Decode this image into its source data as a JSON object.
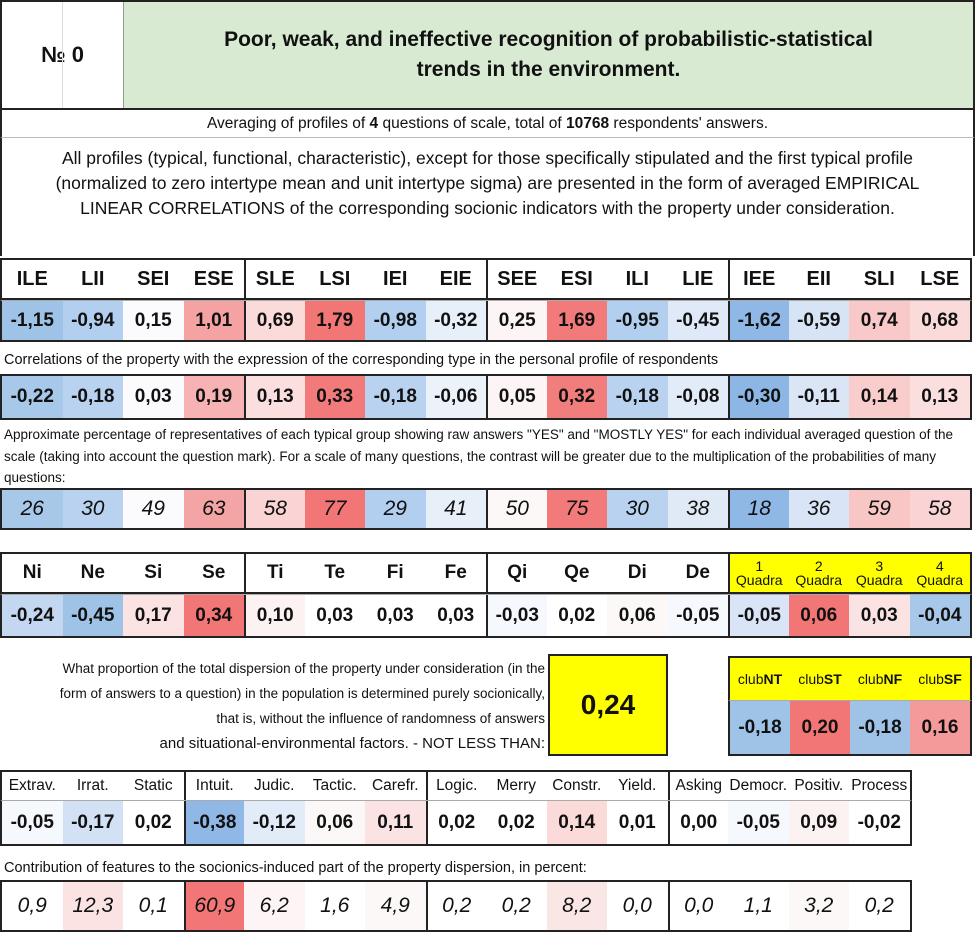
{
  "header": {
    "number_label": "№ 0",
    "title": "Poor, weak, and ineffective recognition of probabilistic-statistical trends in the environment."
  },
  "averaging": {
    "prefix": "Averaging of profiles of ",
    "questions": "4",
    "middle": " questions of scale, total of ",
    "respondents": "10768",
    "suffix": " respondents' answers."
  },
  "description": "All profiles (typical, functional, characteristic), except for those specifically stipulated and the first typical profile (normalized to zero intertype mean and unit intertype sigma) are presented in the form of averaged EMPIRICAL LINEAR CORRELATIONS of the corresponding socionic indicators with the property under consideration.",
  "types": [
    {
      "name": "ILE",
      "v1": "-1,15",
      "v2": "-0,22",
      "v3": "26",
      "c1": "#9fc3e7",
      "c2": "#a8c8e9",
      "c3": "#a8c8e9"
    },
    {
      "name": "LII",
      "v1": "-0,94",
      "v2": "-0,18",
      "v3": "30",
      "c1": "#b3cff0",
      "c2": "#b8d2ef",
      "c3": "#b8d2ef"
    },
    {
      "name": "SEI",
      "v1": "0,15",
      "v2": "0,03",
      "v3": "49",
      "c1": "#fbfbfd",
      "c2": "#fbfbfd",
      "c3": "#fbfbfd"
    },
    {
      "name": "ESE",
      "v1": "1,01",
      "v2": "0,19",
      "v3": "63",
      "c1": "#f4a2a2",
      "c2": "#f7b3b3",
      "c3": "#f3a5a5"
    },
    {
      "name": "SLE",
      "v1": "0,69",
      "v2": "0,13",
      "v3": "58",
      "c1": "#fbdada",
      "c2": "#fbdede",
      "c3": "#fad4d4"
    },
    {
      "name": "LSI",
      "v1": "1,79",
      "v2": "0,33",
      "v3": "77",
      "c1": "#f27676",
      "c2": "#f27a7a",
      "c3": "#f27676"
    },
    {
      "name": "IEI",
      "v1": "-0,98",
      "v2": "-0,18",
      "v3": "29",
      "c1": "#b3cff0",
      "c2": "#b8d2ef",
      "c3": "#b3cff0"
    },
    {
      "name": "EIE",
      "v1": "-0,32",
      "v2": "-0,06",
      "v3": "41",
      "c1": "#e7eff9",
      "c2": "#ebf2fa",
      "c3": "#e7eff9"
    },
    {
      "name": "SEE",
      "v1": "0,25",
      "v2": "0,05",
      "v3": "50",
      "c1": "#fdf5f5",
      "c2": "#fdf5f5",
      "c3": "#fdf8f8"
    },
    {
      "name": "ESI",
      "v1": "1,69",
      "v2": "0,32",
      "v3": "75",
      "c1": "#f27a7a",
      "c2": "#f27d7d",
      "c3": "#f27a7a"
    },
    {
      "name": "ILI",
      "v1": "-0,95",
      "v2": "-0,18",
      "v3": "30",
      "c1": "#b3cff0",
      "c2": "#b8d2ef",
      "c3": "#b8d2ef"
    },
    {
      "name": "LIE",
      "v1": "-0,45",
      "v2": "-0,08",
      "v3": "38",
      "c1": "#dfe9f7",
      "c2": "#e2ecf8",
      "c3": "#e0eaf7"
    },
    {
      "name": "IEE",
      "v1": "-1,62",
      "v2": "-0,30",
      "v3": "18",
      "c1": "#8fb8e6",
      "c2": "#8db6e4",
      "c3": "#8fb8e6"
    },
    {
      "name": "EII",
      "v1": "-0,59",
      "v2": "-0,11",
      "v3": "36",
      "c1": "#d7e4f5",
      "c2": "#dae6f6",
      "c3": "#d9e5f6"
    },
    {
      "name": "SLI",
      "v1": "0,74",
      "v2": "0,14",
      "v3": "59",
      "c1": "#f9c9c9",
      "c2": "#facdcd",
      "c3": "#f9c6c6"
    },
    {
      "name": "LSE",
      "v1": "0,68",
      "v2": "0,13",
      "v3": "58",
      "c1": "#fbdada",
      "c2": "#fbdede",
      "c3": "#fad4d4"
    }
  ],
  "corr_label": "Correlations of the property with the expression of the corresponding type in the personal profile of respondents",
  "pct_label": "Approximate percentage of representatives of each typical group showing raw answers \"YES\" and \"MOSTLY YES\" for each individual averaged question of the scale (taking into account the question mark). For a scale of many questions, the contrast will be greater due to the multiplication of the probabilities of many questions:",
  "functions": [
    {
      "name": "Ni",
      "v": "-0,24",
      "c": "#c3d7f1"
    },
    {
      "name": "Ne",
      "v": "-0,45",
      "c": "#9fc3e7"
    },
    {
      "name": "Si",
      "v": "0,17",
      "c": "#fbe3e3"
    },
    {
      "name": "Se",
      "v": "0,34",
      "c": "#f27676"
    },
    {
      "name": "Ti",
      "v": "0,10",
      "c": "#fdf2f2"
    },
    {
      "name": "Te",
      "v": "0,03",
      "c": "#ffffff"
    },
    {
      "name": "Fi",
      "v": "0,03",
      "c": "#ffffff"
    },
    {
      "name": "Fe",
      "v": "0,03",
      "c": "#ffffff"
    },
    {
      "name": "Qi",
      "v": "-0,03",
      "c": "#f5f8fc"
    },
    {
      "name": "Qe",
      "v": "0,02",
      "c": "#ffffff"
    },
    {
      "name": "Di",
      "v": "0,06",
      "c": "#fdf8f8"
    },
    {
      "name": "De",
      "v": "-0,05",
      "c": "#f5f8fc"
    }
  ],
  "quadras": [
    {
      "num": "1",
      "label": "Quadra",
      "v": "-0,05",
      "c": "#d9e5f6"
    },
    {
      "num": "2",
      "label": "Quadra",
      "v": "0,06",
      "c": "#f27676"
    },
    {
      "num": "3",
      "label": "Quadra",
      "v": "0,03",
      "c": "#fbe3e3"
    },
    {
      "num": "4",
      "label": "Quadra",
      "v": "-0,04",
      "c": "#a8c8e9"
    }
  ],
  "dispersion": {
    "text": "What proportion of the total dispersion of the property under consideration (in the form of answers to a question) in the population is determined purely socionically, that is, without the influence of randomness of answers",
    "text_last": "and situational-environmental factors. - NOT LESS THAN:",
    "value": "0,24"
  },
  "clubs": [
    {
      "prefix": "club",
      "suffix": "NT",
      "v": "-0,18",
      "c": "#9fc3e7"
    },
    {
      "prefix": "club",
      "suffix": "ST",
      "v": "0,20",
      "c": "#f27676"
    },
    {
      "prefix": "club",
      "suffix": "NF",
      "v": "-0,18",
      "c": "#9fc3e7"
    },
    {
      "prefix": "club",
      "suffix": "SF",
      "v": "0,16",
      "c": "#f49a9a"
    }
  ],
  "features": [
    {
      "name": "Extrav.",
      "v": "-0,05",
      "p": "0,9",
      "c": "#f5f8fc",
      "pc": "#ffffff"
    },
    {
      "name": "Irrat.",
      "v": "-0,17",
      "p": "12,3",
      "c": "#d3e1f4",
      "pc": "#fbe3e3"
    },
    {
      "name": "Static",
      "v": "0,02",
      "p": "0,1",
      "c": "#ffffff",
      "pc": "#ffffff"
    },
    {
      "name": "Intuit.",
      "v": "-0,38",
      "p": "60,9",
      "c": "#8fb8e6",
      "pc": "#f27676"
    },
    {
      "name": "Judic.",
      "v": "-0,12",
      "p": "6,2",
      "c": "#e2ecf8",
      "pc": "#fdf5f5"
    },
    {
      "name": "Tactic.",
      "v": "0,06",
      "p": "1,6",
      "c": "#fdf8f8",
      "pc": "#ffffff"
    },
    {
      "name": "Carefr.",
      "v": "0,11",
      "p": "4,9",
      "c": "#fbe3e3",
      "pc": "#fdf8f8"
    },
    {
      "name": "Logic.",
      "v": "0,02",
      "p": "0,2",
      "c": "#ffffff",
      "pc": "#ffffff"
    },
    {
      "name": "Merry",
      "v": "0,02",
      "p": "0,2",
      "c": "#ffffff",
      "pc": "#ffffff"
    },
    {
      "name": "Constr.",
      "v": "0,14",
      "p": "8,2",
      "c": "#fbdada",
      "pc": "#fbe6e6"
    },
    {
      "name": "Yield.",
      "v": "0,01",
      "p": "0,0",
      "c": "#ffffff",
      "pc": "#ffffff"
    },
    {
      "name": "Asking",
      "v": "0,00",
      "p": "0,0",
      "c": "#ffffff",
      "pc": "#ffffff"
    },
    {
      "name": "Democr.",
      "v": "-0,05",
      "p": "1,1",
      "c": "#f5f8fc",
      "pc": "#ffffff"
    },
    {
      "name": "Positiv.",
      "v": "0,09",
      "p": "3,2",
      "c": "#fdf2f2",
      "pc": "#fdf8f8"
    },
    {
      "name": "Process",
      "v": "-0,02",
      "p": "0,2",
      "c": "#ffffff",
      "pc": "#ffffff"
    }
  ],
  "contrib_label": "Contribution of features to the socionics-induced part of the property dispersion, in percent:"
}
